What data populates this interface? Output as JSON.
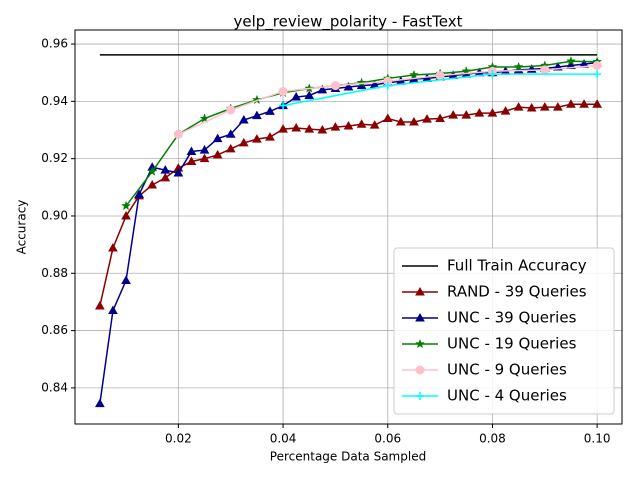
{
  "chart_data": {
    "type": "line",
    "title": "yelp_review_polarity - FastText",
    "xlabel": "Percentage Data Sampled",
    "ylabel": "Accuracy",
    "xlim": [
      0.00025,
      0.10475
    ],
    "ylim": [
      0.8274,
      0.9649
    ],
    "xticks": [
      0.02,
      0.04,
      0.06,
      0.08,
      {
        "value": 0.1,
        "label": "0.10"
      }
    ],
    "yticks": [
      0.84,
      0.86,
      0.88,
      {
        "value": 0.9,
        "label": "0.90"
      },
      0.92,
      0.94,
      0.96
    ],
    "grid": true,
    "legend": "lower right",
    "series": [
      {
        "name": "Full Train Accuracy",
        "color": "#000000",
        "marker": "none",
        "x": [
          0.005,
          0.1
        ],
        "values": [
          0.9562,
          0.9562
        ]
      },
      {
        "name": "RAND - 39 Queries",
        "color": "#8b0000",
        "marker": "triangle",
        "x": [
          0.005,
          0.0075,
          0.01,
          0.0125,
          0.015,
          0.0175,
          0.02,
          0.0225,
          0.025,
          0.0275,
          0.03,
          0.0325,
          0.035,
          0.0375,
          0.04,
          0.0425,
          0.045,
          0.0475,
          0.05,
          0.0525,
          0.055,
          0.0575,
          0.06,
          0.0625,
          0.065,
          0.0675,
          0.07,
          0.0725,
          0.075,
          0.0775,
          0.08,
          0.0825,
          0.085,
          0.0875,
          0.09,
          0.0925,
          0.095,
          0.0975,
          0.1
        ],
        "values": [
          0.8686,
          0.8888,
          0.9,
          0.907,
          0.9108,
          0.9133,
          0.9167,
          0.919,
          0.92,
          0.9213,
          0.9234,
          0.9255,
          0.9268,
          0.9275,
          0.9303,
          0.9307,
          0.9303,
          0.93,
          0.931,
          0.9314,
          0.932,
          0.9317,
          0.934,
          0.9328,
          0.9328,
          0.9338,
          0.934,
          0.9352,
          0.9352,
          0.9359,
          0.9359,
          0.9366,
          0.938,
          0.9377,
          0.938,
          0.938,
          0.939,
          0.939,
          0.939
        ]
      },
      {
        "name": "UNC - 39 Queries",
        "color": "#00008b",
        "marker": "triangle",
        "x": [
          0.005,
          0.0075,
          0.01,
          0.0125,
          0.015,
          0.0175,
          0.02,
          0.0225,
          0.025,
          0.0275,
          0.03,
          0.0325,
          0.035,
          0.0375,
          0.04,
          0.0425,
          0.045,
          0.0475,
          0.05,
          0.0525,
          0.055,
          0.0575,
          0.06,
          0.0625,
          0.065,
          0.0675,
          0.07,
          0.0725,
          0.075,
          0.0775,
          0.08,
          0.0825,
          0.085,
          0.0875,
          0.09,
          0.0925,
          0.095,
          0.0975,
          0.1
        ],
        "values": [
          0.8345,
          0.867,
          0.8775,
          0.9075,
          0.917,
          0.916,
          0.915,
          0.9225,
          0.923,
          0.927,
          0.9285,
          0.9335,
          0.935,
          0.9365,
          0.9385,
          0.9415,
          0.942,
          0.944,
          0.9445,
          0.945,
          0.9455,
          0.9458,
          0.9465,
          0.947,
          0.9478,
          0.948,
          0.9485,
          0.949,
          0.9495,
          0.95,
          0.95,
          0.9505,
          0.951,
          0.9512,
          0.9515,
          0.952,
          0.9525,
          0.953,
          0.9535
        ]
      },
      {
        "name": "UNC - 19 Queries",
        "color": "#008000",
        "marker": "star",
        "x": [
          0.01,
          0.015,
          0.02,
          0.025,
          0.03,
          0.035,
          0.04,
          0.045,
          0.05,
          0.055,
          0.06,
          0.065,
          0.07,
          0.075,
          0.08,
          0.085,
          0.09,
          0.095,
          0.1
        ],
        "values": [
          0.9035,
          0.9155,
          0.9285,
          0.934,
          0.9375,
          0.9405,
          0.943,
          0.9445,
          0.9455,
          0.9465,
          0.948,
          0.9492,
          0.9497,
          0.9505,
          0.952,
          0.952,
          0.9525,
          0.954,
          0.9538
        ]
      },
      {
        "name": "UNC - 9 Queries",
        "color": "#ffc0cb",
        "marker": "circle",
        "x": [
          0.02,
          0.03,
          0.04,
          0.05,
          0.06,
          0.07,
          0.08,
          0.09,
          0.1
        ],
        "values": [
          0.9285,
          0.937,
          0.9435,
          0.9455,
          0.947,
          0.949,
          0.9505,
          0.951,
          0.9525
        ]
      },
      {
        "name": "UNC - 4 Queries",
        "color": "#00ffff",
        "marker": "plus",
        "x": [
          0.04,
          0.06,
          0.08,
          0.1
        ],
        "values": [
          0.9385,
          0.9455,
          0.9495,
          0.9495
        ]
      }
    ]
  }
}
